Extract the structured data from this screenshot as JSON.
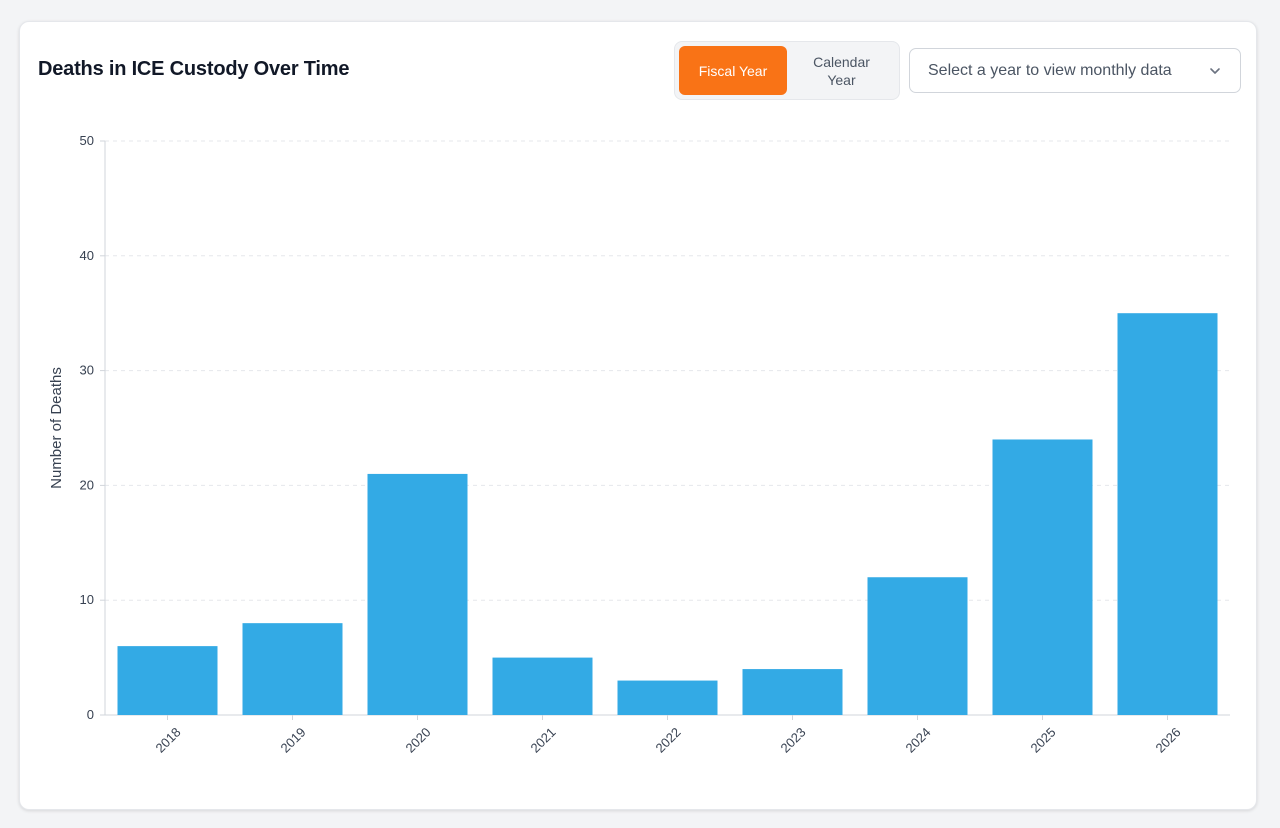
{
  "header": {
    "title": "Deaths in ICE Custody Over Time"
  },
  "toggle": {
    "fiscal_label": "Fiscal Year",
    "calendar_label": "Calendar\nYear",
    "active": "Fiscal Year",
    "active_color": "#f97316"
  },
  "select": {
    "placeholder": "Select a year to view monthly data",
    "icon": "chevron-down-icon"
  },
  "chart_data": {
    "type": "bar",
    "categories": [
      "2018",
      "2019",
      "2020",
      "2021",
      "2022",
      "2023",
      "2024",
      "2025",
      "2026"
    ],
    "values": [
      6,
      8,
      21,
      5,
      3,
      4,
      12,
      24,
      35
    ],
    "xlabel": "",
    "ylabel": "Number of Deaths",
    "ylim": [
      0,
      50
    ],
    "yticks": [
      0,
      10,
      20,
      30,
      40,
      50
    ],
    "grid": true,
    "bar_color": "#33aae5"
  }
}
